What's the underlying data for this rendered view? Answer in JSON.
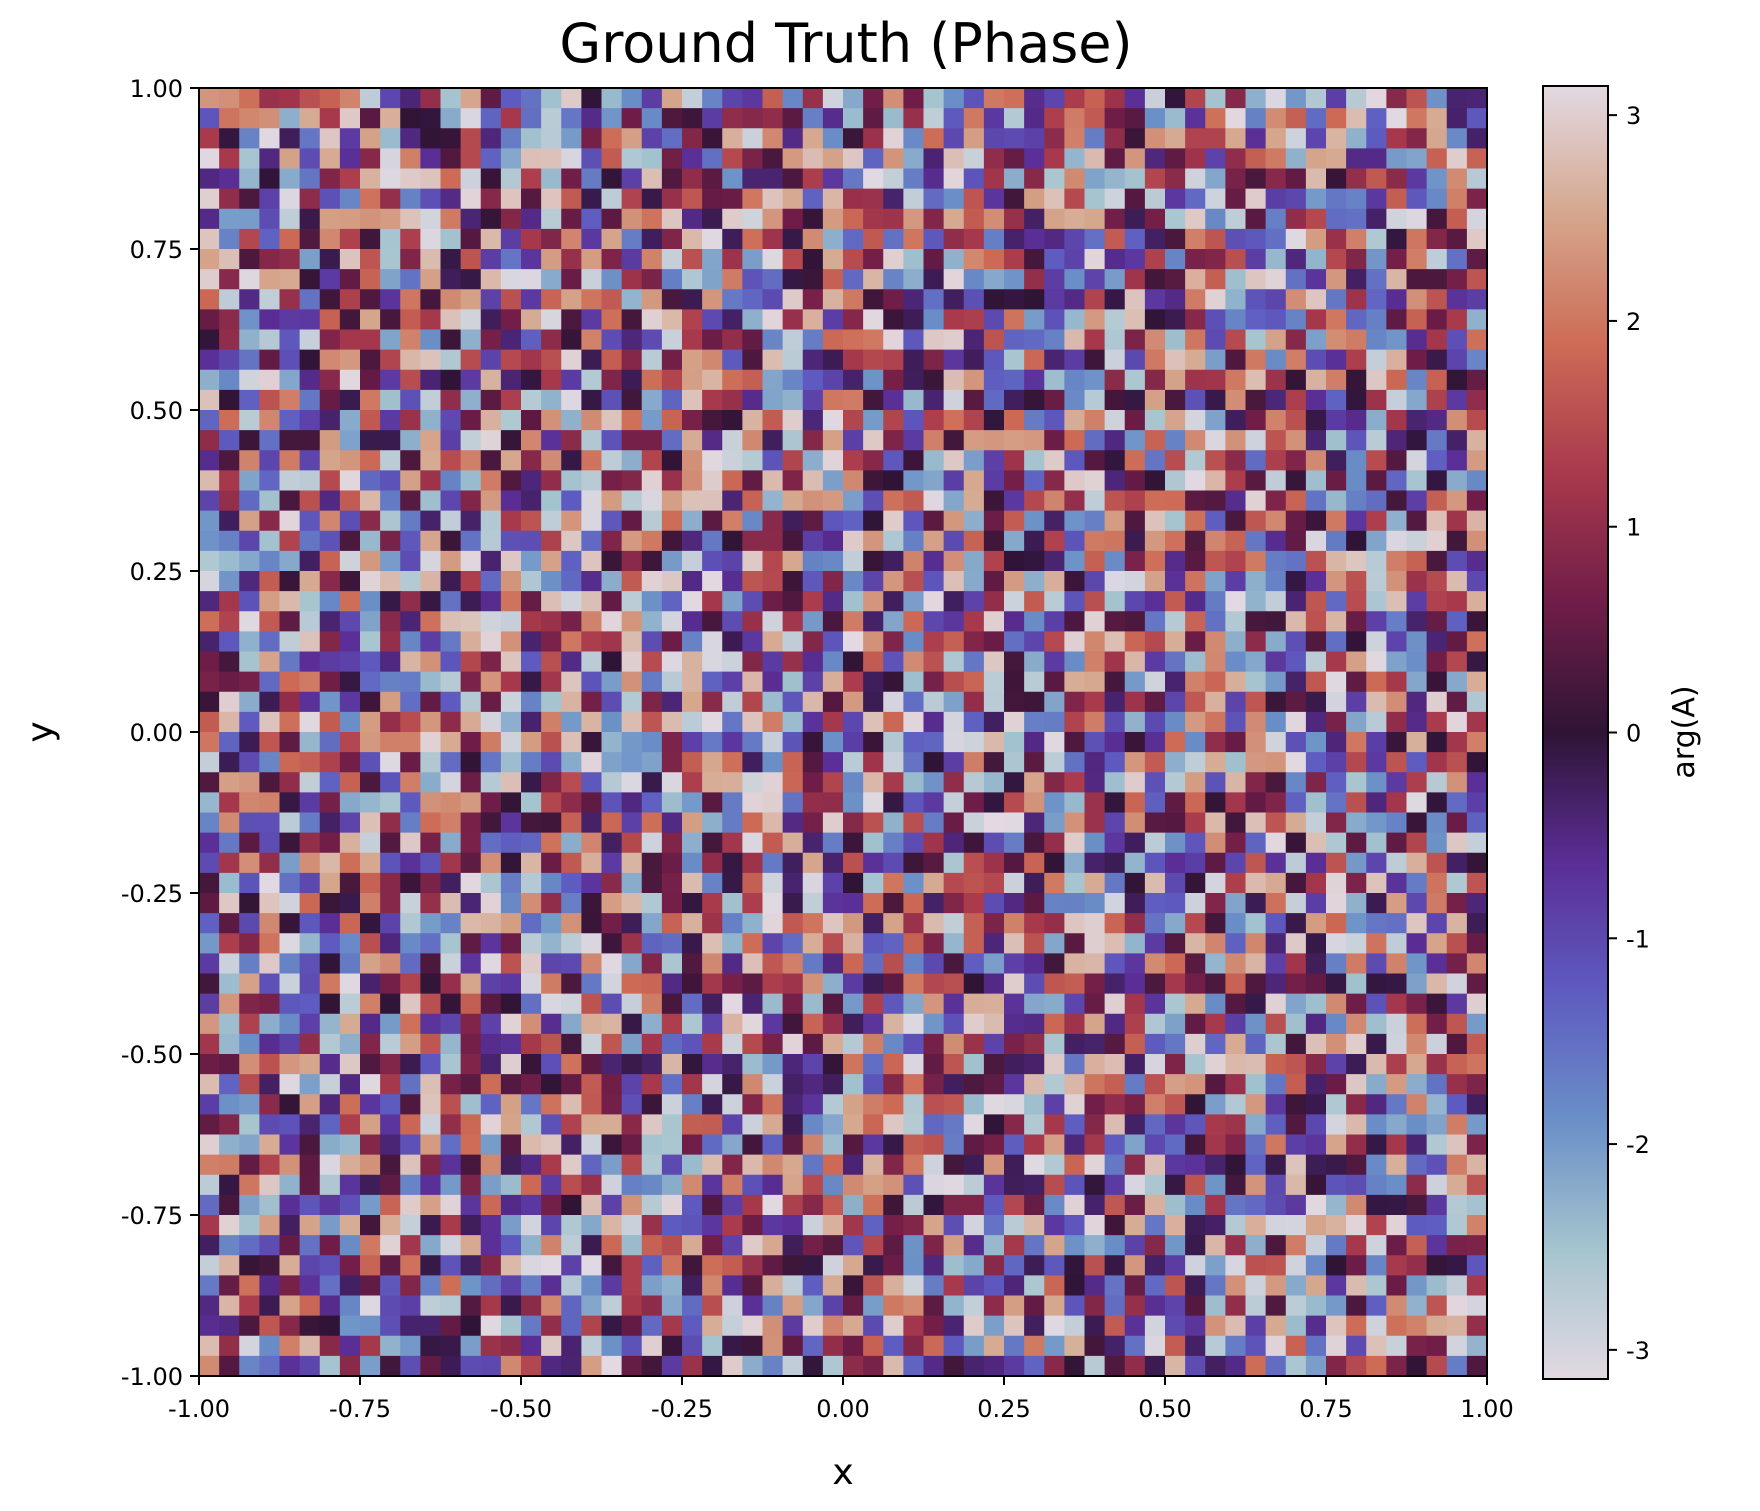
{
  "chart_data": {
    "type": "heatmap",
    "title": "Ground Truth (Phase)",
    "xlabel": "x",
    "ylabel": "y",
    "xlim": [
      -1.0,
      1.0
    ],
    "ylim": [
      -1.0,
      1.0
    ],
    "x_ticks": [
      "-1.00",
      "-0.75",
      "-0.50",
      "-0.25",
      "0.00",
      "0.25",
      "0.50",
      "0.75",
      "1.00"
    ],
    "y_ticks": [
      "-1.00",
      "-0.75",
      "-0.50",
      "-0.25",
      "0.00",
      "0.25",
      "0.50",
      "0.75",
      "1.00"
    ],
    "grid": false,
    "colorbar": {
      "label": "arg(A)",
      "range": [
        -3.14159,
        3.14159
      ],
      "ticks": [
        "-3",
        "-2",
        "-1",
        "0",
        "1",
        "2",
        "3"
      ],
      "colormap": "twilight_shifted",
      "colormap_stops": [
        "#e2d9e2",
        "#a5c4cf",
        "#6a8fc7",
        "#5e5bc0",
        "#5a2e96",
        "#2f1436",
        "#6f1d48",
        "#a8394c",
        "#cd6b56",
        "#d5a68c",
        "#e2d9e2"
      ]
    },
    "grid_size": [
      64,
      64
    ],
    "values_description": "phase values drawn uniformly in [-pi, pi]",
    "seed": 20240611
  }
}
